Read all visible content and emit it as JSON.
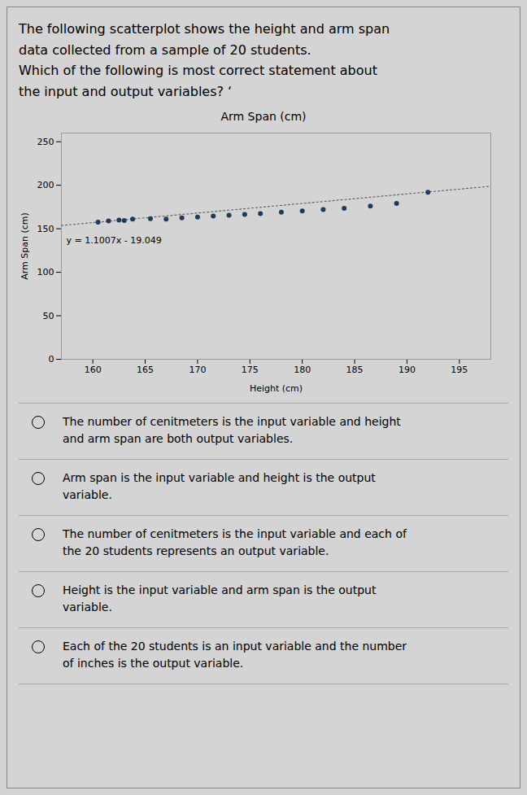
{
  "question": [
    "The following scatterplot shows the height and arm span",
    "data collected from a sample of 20 students.",
    "Which of the following is most correct statement about",
    "the input and output variables? ‘"
  ],
  "options": [
    "The number of cenitmeters is the input variable and height\nand arm span are both output variables.",
    "Arm span is the input variable and height is the output\nvariable.",
    "The number of cenitmeters is the input variable and each of\nthe 20 students represents an output variable.",
    "Height is the input variable and arm span is the output\nvariable.",
    "Each of the 20 students is an input variable and the number\nof inches is the output variable."
  ],
  "chart_data": {
    "type": "scatter",
    "title": "Arm Span (cm)",
    "xlabel": "Height (cm)",
    "ylabel": "Arm Span (cm)",
    "x": [
      160.5,
      161.5,
      162.5,
      163.0,
      163.8,
      165.5,
      167.0,
      168.5,
      170.0,
      171.5,
      173.0,
      174.5,
      176.0,
      178.0,
      180.0,
      182.0,
      184.0,
      186.5,
      189.0,
      192.0
    ],
    "values": [
      157.5,
      159.0,
      160.0,
      159.5,
      161.0,
      161.5,
      161.0,
      162.5,
      163.5,
      164.5,
      165.5,
      166.5,
      167.5,
      169.0,
      170.5,
      172.0,
      173.5,
      176.0,
      179.0,
      192.0
    ],
    "color": "#1e3a5c",
    "marker": "circle",
    "trendline": {
      "type": "line",
      "x": [
        157,
        198
      ],
      "values": [
        153.7609,
        198.8896
      ],
      "color": "#666666",
      "line_style": "dotted",
      "label": "y = 1.1007x - 19.049"
    },
    "xlim": [
      157,
      198
    ],
    "ylim": [
      0,
      260
    ],
    "xticks": [
      160,
      165,
      170,
      175,
      180,
      185,
      190,
      195
    ],
    "yticks": [
      0,
      50,
      100,
      150,
      200,
      250
    ],
    "grid": false
  }
}
